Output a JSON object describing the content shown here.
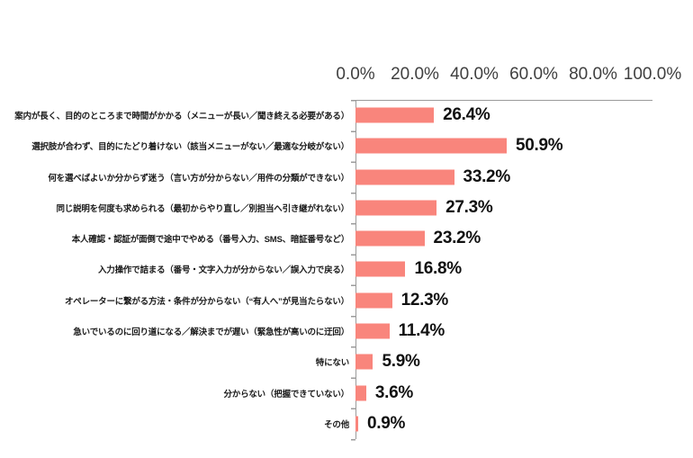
{
  "chart_data": {
    "type": "bar",
    "orientation": "horizontal",
    "title": "",
    "legend": "none",
    "grid": "off",
    "categories": [
      "案内が長く、目的のところまで時間がかかる（メニューが長い／聞き終える必要がある）",
      "選択肢が合わず、目的にたどり着けない（該当メニューがない／最適な分岐がない）",
      "何を選べばよいか分からず迷う（言い方が分からない／用件の分類ができない）",
      "同じ説明を何度も求められる（最初からやり直し／別担当へ引き継がれない）",
      "本人確認・認証が面倒で途中でやめる（番号入力、SMS、暗証番号など）",
      "入力操作で詰まる（番号・文字入力が分からない／誤入力で戻る）",
      "オペレーターに繋がる方法・条件が分からない（“有人へ”が見当たらない）",
      "急いでいるのに回り道になる／解決までが遅い（緊急性が高いのに迂回）",
      "特にない",
      "分からない（把握できていない）",
      "その他"
    ],
    "values": [
      26.4,
      50.9,
      33.2,
      27.3,
      23.2,
      16.8,
      12.3,
      11.4,
      5.9,
      3.6,
      0.9
    ],
    "value_labels": [
      "26.4%",
      "50.9%",
      "33.2%",
      "27.3%",
      "23.2%",
      "16.8%",
      "12.3%",
      "11.4%",
      "5.9%",
      "3.6%",
      "0.9%"
    ],
    "x_axis": {
      "position": "top",
      "range": [
        0,
        100
      ],
      "ticks": [
        "0.0%",
        "20.0%",
        "40.0%",
        "60.0%",
        "80.0%",
        "100.0%"
      ]
    },
    "colors": {
      "bar": "#F9857C",
      "axis": "#9B9B9B",
      "tick_label": "#3F3F3F",
      "value_label": "#111111",
      "category_label": "#1A1A1A",
      "background": "#FFFFFF"
    }
  }
}
